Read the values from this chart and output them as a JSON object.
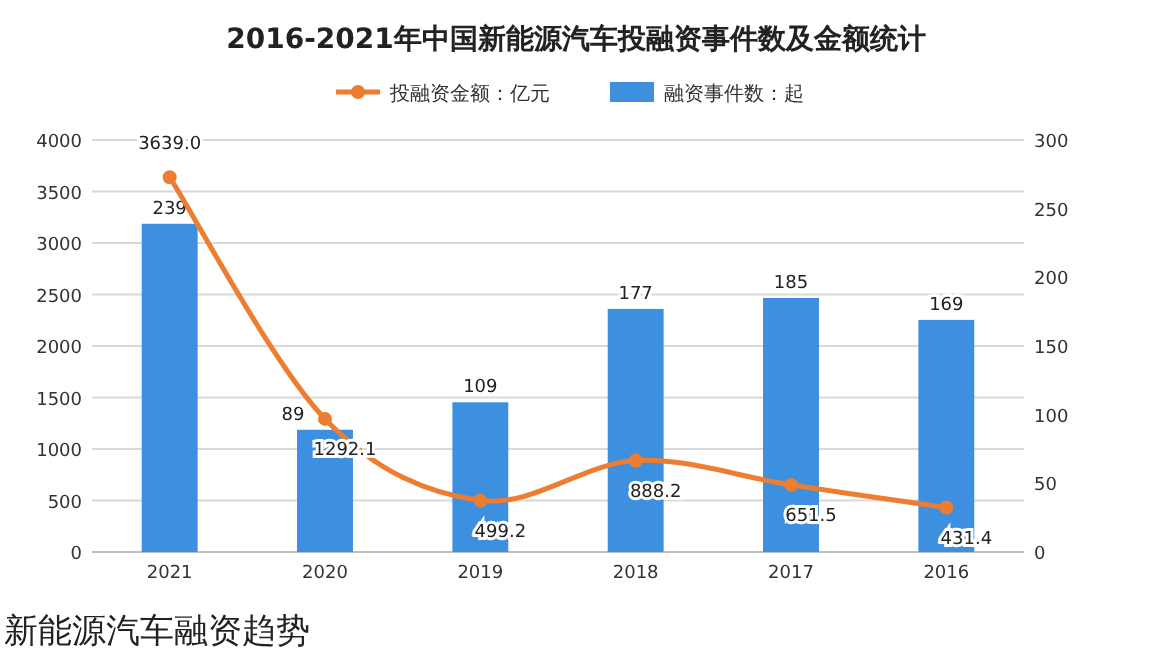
{
  "chart_data": {
    "type": "bar",
    "title": "2016-2021年中国新能源汽车投融资事件数及金额统计",
    "categories": [
      "2021",
      "2020",
      "2019",
      "2018",
      "2017",
      "2016"
    ],
    "series": [
      {
        "name": "投融资金额：亿元",
        "type": "line",
        "color": "#ed7d31",
        "values": [
          3639,
          1292.1,
          499.2,
          888.2,
          651.5,
          431.4
        ],
        "value_labels": [
          "3639.0",
          "1292.1",
          "499.2",
          "888.2",
          "651.5",
          "431.4"
        ],
        "marker": "circle"
      },
      {
        "name": "融资事件数：起",
        "color": "#3d8fe0",
        "axis": "y2",
        "values": [
          239,
          89,
          109,
          177,
          185,
          169
        ]
      }
    ],
    "ylim": [
      0,
      4000
    ],
    "yticks": [
      0,
      500,
      1000,
      1500,
      2000,
      2500,
      3000,
      3500,
      4000
    ],
    "y2lim": [
      0,
      300
    ],
    "y2ticks": [
      0,
      50,
      100,
      150,
      200,
      250,
      300
    ],
    "grid": "y",
    "legend": "top",
    "data_labels": true,
    "annotations": [
      "新能源汽车融资趋势"
    ]
  }
}
